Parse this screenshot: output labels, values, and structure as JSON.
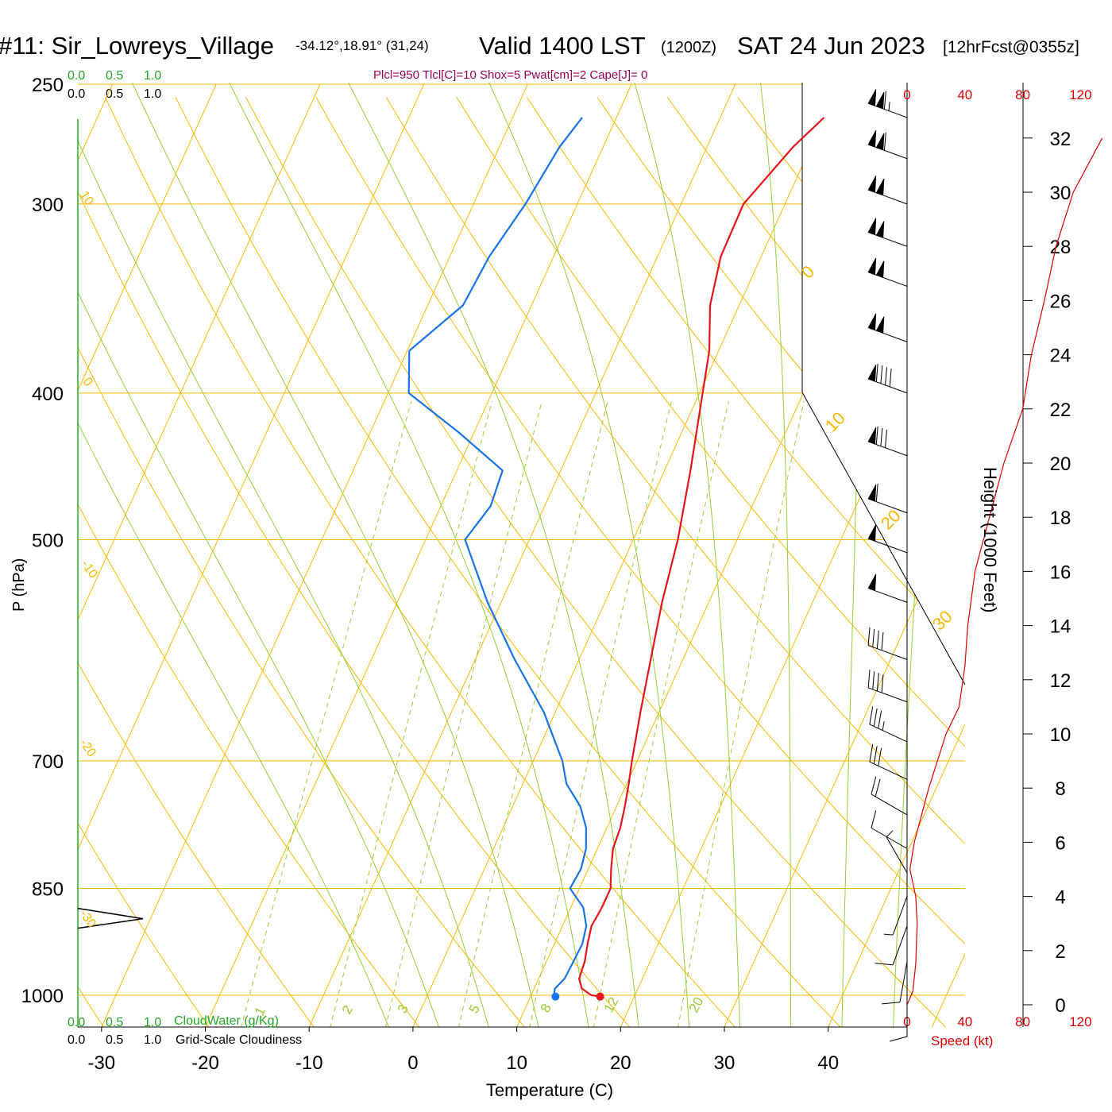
{
  "header": {
    "station": "#11: Sir_Lowreys_Village",
    "coords": "-34.12°,18.91° (31,24)",
    "valid": "Valid 1400 LST",
    "utc": "(1200Z)",
    "date": "SAT 24 Jun 2023",
    "forecast": "[12hrFcst@0355z]"
  },
  "indices_line": "Plcl=950 Tlcl[C]=10 Shox=5 Pwat[cm]=2 Cape[J]= 0",
  "cloud_scales": {
    "top_green": [
      "0.0",
      "0.5",
      "1.0"
    ],
    "top_black": [
      "0.0",
      "0.5",
      "1.0"
    ],
    "bottom_green": [
      "0.0",
      "0.5",
      "1.0"
    ],
    "bottom_black": [
      "0.0",
      "0.5",
      "1.0"
    ],
    "cloudwater_label": "CloudWater (g/Kg)",
    "cloudiness_label": "Grid-Scale Cloudiness"
  },
  "colors": {
    "isotherm": "#f5b800",
    "dry_adiabat": "#f5b800",
    "moist_adiabat": "#99cc33",
    "mixing_ratio": "#99cc33",
    "temperature": "#e8141c",
    "dewpoint": "#1a73e8",
    "cloudwater": "#22aa22",
    "indices": "#990055",
    "speed_axis": "#dd0000",
    "wind_barb": "#000000"
  },
  "chart_data": {
    "type": "skew-t",
    "xlabel": "Temperature (C)",
    "ylabel": "P (hPa)",
    "x_ticks": [
      -30,
      -20,
      -10,
      0,
      10,
      20,
      30,
      40
    ],
    "pressure_levels": [
      250,
      300,
      400,
      500,
      700,
      850,
      1000
    ],
    "temperature_profile_C": [
      {
        "p": 1002,
        "t": 16.7
      },
      {
        "p": 1000,
        "t": 15.8
      },
      {
        "p": 990,
        "t": 14.6
      },
      {
        "p": 975,
        "t": 13.9
      },
      {
        "p": 950,
        "t": 13.7
      },
      {
        "p": 925,
        "t": 13.2
      },
      {
        "p": 900,
        "t": 12.8
      },
      {
        "p": 875,
        "t": 13.0
      },
      {
        "p": 850,
        "t": 13.0
      },
      {
        "p": 825,
        "t": 12.2
      },
      {
        "p": 800,
        "t": 11.5
      },
      {
        "p": 775,
        "t": 11.3
      },
      {
        "p": 750,
        "t": 10.8
      },
      {
        "p": 725,
        "t": 10.2
      },
      {
        "p": 700,
        "t": 9.5
      },
      {
        "p": 650,
        "t": 8.2
      },
      {
        "p": 600,
        "t": 6.9
      },
      {
        "p": 550,
        "t": 5.5
      },
      {
        "p": 500,
        "t": 4.3
      },
      {
        "p": 450,
        "t": 2.5
      },
      {
        "p": 400,
        "t": 0.3
      },
      {
        "p": 375,
        "t": -0.9
      },
      {
        "p": 350,
        "t": -2.8
      },
      {
        "p": 325,
        "t": -3.9
      },
      {
        "p": 300,
        "t": -4.0
      },
      {
        "p": 275,
        "t": -1.7
      },
      {
        "p": 263,
        "t": 0.0
      }
    ],
    "dewpoint_profile_C": [
      {
        "p": 1002,
        "t": 12.4
      },
      {
        "p": 1000,
        "t": 12.2
      },
      {
        "p": 990,
        "t": 12.0
      },
      {
        "p": 975,
        "t": 12.5
      },
      {
        "p": 950,
        "t": 12.6
      },
      {
        "p": 925,
        "t": 12.7
      },
      {
        "p": 900,
        "t": 12.3
      },
      {
        "p": 875,
        "t": 11.2
      },
      {
        "p": 850,
        "t": 9.1
      },
      {
        "p": 825,
        "t": 9.3
      },
      {
        "p": 800,
        "t": 8.9
      },
      {
        "p": 775,
        "t": 8.0
      },
      {
        "p": 750,
        "t": 6.5
      },
      {
        "p": 725,
        "t": 4.2
      },
      {
        "p": 700,
        "t": 2.8
      },
      {
        "p": 650,
        "t": -1.1
      },
      {
        "p": 600,
        "t": -6.2
      },
      {
        "p": 550,
        "t": -11.3
      },
      {
        "p": 500,
        "t": -16.2
      },
      {
        "p": 475,
        "t": -15.2
      },
      {
        "p": 450,
        "t": -15.6
      },
      {
        "p": 425,
        "t": -21.4
      },
      {
        "p": 400,
        "t": -28.0
      },
      {
        "p": 375,
        "t": -29.8
      },
      {
        "p": 350,
        "t": -26.6
      },
      {
        "p": 325,
        "t": -26.2
      },
      {
        "p": 300,
        "t": -25.0
      },
      {
        "p": 275,
        "t": -24.2
      },
      {
        "p": 263,
        "t": -23.3
      }
    ],
    "isotherm_labels": [
      "0",
      "10",
      "20",
      "30"
    ],
    "dry_adiabat_labels": [
      "10",
      "0",
      "-10",
      "-20",
      "-30"
    ],
    "mixing_ratio_labels": [
      "1",
      "2",
      "3",
      "5",
      "8",
      "12",
      "20"
    ],
    "mixing_ratio_values": [
      1,
      2,
      3,
      5,
      8,
      12,
      20
    ],
    "height_axis": {
      "label": "Height (1000 Feet)",
      "ticks": [
        0,
        2,
        4,
        6,
        8,
        10,
        12,
        14,
        16,
        18,
        20,
        22,
        24,
        26,
        28,
        30,
        32
      ]
    },
    "speed_axis": {
      "label": "Speed (kt)",
      "ticks": [
        "0",
        "40",
        "80",
        "120"
      ]
    },
    "wind_speed_profile": [
      {
        "h": 0,
        "kt": 0
      },
      {
        "h": 0.5,
        "kt": 4
      },
      {
        "h": 1.5,
        "kt": 6
      },
      {
        "h": 3,
        "kt": 7
      },
      {
        "h": 4,
        "kt": 6
      },
      {
        "h": 5,
        "kt": 2
      },
      {
        "h": 6,
        "kt": 5
      },
      {
        "h": 8,
        "kt": 15
      },
      {
        "h": 10,
        "kt": 27
      },
      {
        "h": 11,
        "kt": 36
      },
      {
        "h": 12.5,
        "kt": 40
      },
      {
        "h": 14,
        "kt": 42
      },
      {
        "h": 16,
        "kt": 47
      },
      {
        "h": 18,
        "kt": 57
      },
      {
        "h": 20,
        "kt": 67
      },
      {
        "h": 22,
        "kt": 80
      },
      {
        "h": 24,
        "kt": 86
      },
      {
        "h": 26,
        "kt": 95
      },
      {
        "h": 28,
        "kt": 103
      },
      {
        "h": 30,
        "kt": 115
      },
      {
        "h": 32,
        "kt": 135
      }
    ],
    "wind_barbs": [
      {
        "p": 263,
        "dir": 290,
        "kt": 115
      },
      {
        "p": 280,
        "dir": 290,
        "kt": 110
      },
      {
        "p": 300,
        "dir": 290,
        "kt": 100
      },
      {
        "p": 320,
        "dir": 290,
        "kt": 100
      },
      {
        "p": 340,
        "dir": 290,
        "kt": 100
      },
      {
        "p": 370,
        "dir": 290,
        "kt": 100
      },
      {
        "p": 400,
        "dir": 290,
        "kt": 90
      },
      {
        "p": 440,
        "dir": 290,
        "kt": 80
      },
      {
        "p": 480,
        "dir": 290,
        "kt": 60
      },
      {
        "p": 510,
        "dir": 290,
        "kt": 50
      },
      {
        "p": 550,
        "dir": 290,
        "kt": 50
      },
      {
        "p": 600,
        "dir": 290,
        "kt": 40
      },
      {
        "p": 640,
        "dir": 290,
        "kt": 40
      },
      {
        "p": 680,
        "dir": 295,
        "kt": 35
      },
      {
        "p": 720,
        "dir": 295,
        "kt": 30
      },
      {
        "p": 760,
        "dir": 300,
        "kt": 20
      },
      {
        "p": 800,
        "dir": 300,
        "kt": 10
      },
      {
        "p": 830,
        "dir": 330,
        "kt": 5
      },
      {
        "p": 860,
        "dir": 200,
        "kt": 5
      },
      {
        "p": 900,
        "dir": 200,
        "kt": 10
      },
      {
        "p": 950,
        "dir": 190,
        "kt": 10
      },
      {
        "p": 1000,
        "dir": 180,
        "kt": 10
      }
    ],
    "cloudiness_marker_p": 890
  }
}
